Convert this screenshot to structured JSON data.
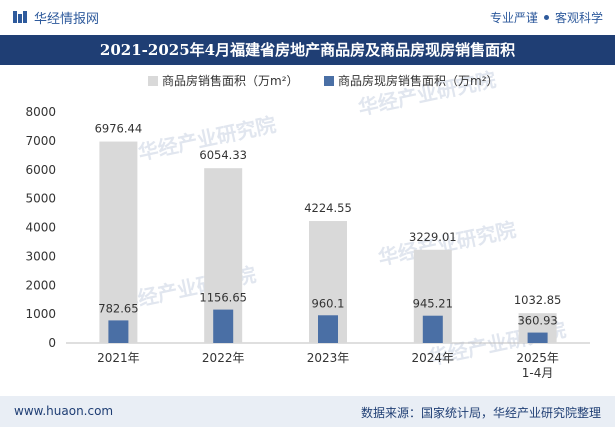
{
  "header": {
    "brand": "华经情报网",
    "slogan_left": "专业严谨",
    "slogan_right": "客观科学",
    "title": "2021-2025年4月福建省房地产商品房及商品房现房销售面积"
  },
  "footer": {
    "url": "www.huaon.com",
    "source": "数据来源：国家统计局，华经产业研究院整理"
  },
  "watermark": {
    "text": "华经产业研究院",
    "url": "www.huaon.com"
  },
  "colors": {
    "series1": "#d9d9d9",
    "series2": "#4a6fa5",
    "title_bg": "#1f3e74"
  },
  "chart_data": {
    "type": "bar",
    "title": "2021-2025年4月福建省房地产商品房及商品房现房销售面积",
    "categories": [
      "2021年",
      "2022年",
      "2023年",
      "2024年",
      "2025年\n1-4月"
    ],
    "series": [
      {
        "name": "商品房销售面积（万m²）",
        "values": [
          6976.44,
          6054.33,
          4224.55,
          3229.01,
          1032.85
        ],
        "labels": [
          "6976.44",
          "6054.33",
          "4224.55",
          "3229.01",
          "1032.85"
        ]
      },
      {
        "name": "商品房现房销售面积（万m²）",
        "values": [
          782.65,
          1156.65,
          960.1,
          945.21,
          360.93
        ],
        "labels": [
          "782.65",
          "1156.65",
          "960.1",
          "945.21",
          "360.93"
        ]
      }
    ],
    "ylim": [
      0,
      8000
    ],
    "yticks": [
      0,
      1000,
      2000,
      3000,
      4000,
      5000,
      6000,
      7000,
      8000
    ],
    "legend": "top-center",
    "xlabel": "",
    "ylabel": ""
  }
}
